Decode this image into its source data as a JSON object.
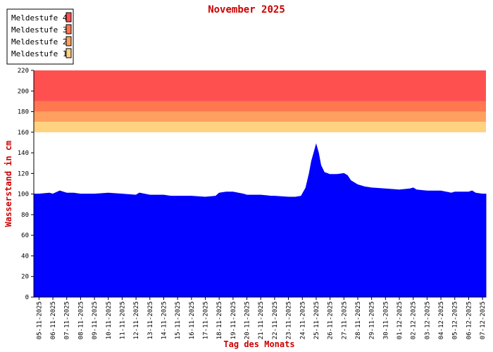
{
  "chart_data": {
    "type": "area",
    "title": "November 2025",
    "xlabel": "Tag des Monats",
    "ylabel": "Wasserstand in cm",
    "ylim": [
      0,
      220
    ],
    "yticks": [
      0,
      20,
      40,
      60,
      80,
      100,
      120,
      140,
      160,
      180,
      200,
      220
    ],
    "x_tick_labels": [
      "05-11-2025",
      "06-11-2025",
      "07-11-2025",
      "08-11-2025",
      "09-11-2025",
      "10-11-2025",
      "11-11-2025",
      "12-11-2025",
      "13-11-2025",
      "14-11-2025",
      "15-11-2025",
      "16-11-2025",
      "17-11-2025",
      "18-11-2025",
      "19-11-2025",
      "20-11-2025",
      "21-11-2025",
      "22-11-2025",
      "23-11-2025",
      "24-11-2025",
      "25-11-2025",
      "26-11-2025",
      "27-11-2025",
      "28-11-2025",
      "29-11-2025",
      "30-11-2025",
      "01-12-2025",
      "02-12-2025",
      "03-12-2025",
      "04-12-2025",
      "05-12-2025",
      "06-12-2025",
      "07-12-2025"
    ],
    "grid": false,
    "legend_position": "top-left",
    "bands": [
      {
        "label": "Meldestufe 4",
        "from": 190,
        "to": 220,
        "color": "#ff5050"
      },
      {
        "label": "Meldestufe 3",
        "from": 180,
        "to": 190,
        "color": "#ff7850"
      },
      {
        "label": "Meldestufe 2",
        "from": 170,
        "to": 180,
        "color": "#ffa060"
      },
      {
        "label": "Meldestufe 1",
        "from": 160,
        "to": 170,
        "color": "#ffd280"
      }
    ],
    "series": [
      {
        "color": "#0000ff",
        "points": [
          [
            "05-11-2025",
            100
          ],
          [
            "05-11-2025 18:00",
            101
          ],
          [
            "06-11-2025",
            100
          ],
          [
            "06-11-2025 12:00",
            103
          ],
          [
            "07-11-2025",
            101
          ],
          [
            "07-11-2025 12:00",
            101
          ],
          [
            "08-11-2025",
            100
          ],
          [
            "09-11-2025",
            100
          ],
          [
            "10-11-2025",
            101
          ],
          [
            "11-11-2025",
            100
          ],
          [
            "12-11-2025",
            99
          ],
          [
            "12-11-2025 06:00",
            101
          ],
          [
            "13-11-2025",
            99
          ],
          [
            "14-11-2025",
            99
          ],
          [
            "14-11-2025 12:00",
            98
          ],
          [
            "15-11-2025",
            98
          ],
          [
            "16-11-2025",
            98
          ],
          [
            "17-11-2025",
            97
          ],
          [
            "17-11-2025 18:00",
            98
          ],
          [
            "18-11-2025",
            101
          ],
          [
            "18-11-2025 12:00",
            102
          ],
          [
            "19-11-2025",
            102
          ],
          [
            "19-11-2025 18:00",
            100
          ],
          [
            "20-11-2025",
            99
          ],
          [
            "21-11-2025",
            99
          ],
          [
            "21-11-2025 18:00",
            98
          ],
          [
            "22-11-2025",
            98
          ],
          [
            "23-11-2025",
            97
          ],
          [
            "23-11-2025 12:00",
            97
          ],
          [
            "23-11-2025 22:00",
            98
          ],
          [
            "24-11-2025",
            100
          ],
          [
            "24-11-2025 06:00",
            106
          ],
          [
            "24-11-2025 12:00",
            120
          ],
          [
            "24-11-2025 16:00",
            132
          ],
          [
            "24-11-2025 20:00",
            140
          ],
          [
            "25-11-2025",
            148
          ],
          [
            "25-11-2025 04:00",
            140
          ],
          [
            "25-11-2025 08:00",
            128
          ],
          [
            "25-11-2025 14:00",
            121
          ],
          [
            "26-11-2025",
            119
          ],
          [
            "26-11-2025 12:00",
            119
          ],
          [
            "27-11-2025",
            120
          ],
          [
            "27-11-2025 06:00",
            118
          ],
          [
            "27-11-2025 12:00",
            113
          ],
          [
            "28-11-2025",
            109
          ],
          [
            "28-11-2025 12:00",
            107
          ],
          [
            "29-11-2025",
            106
          ],
          [
            "30-11-2025",
            105
          ],
          [
            "01-12-2025",
            104
          ],
          [
            "01-12-2025 18:00",
            105
          ],
          [
            "02-12-2025",
            106
          ],
          [
            "02-12-2025 06:00",
            104
          ],
          [
            "03-12-2025",
            103
          ],
          [
            "04-12-2025",
            103
          ],
          [
            "04-12-2025 18:00",
            101
          ],
          [
            "05-12-2025",
            102
          ],
          [
            "06-12-2025",
            102
          ],
          [
            "06-12-2025 06:00",
            103
          ],
          [
            "06-12-2025 12:00",
            101
          ],
          [
            "07-12-2025",
            100
          ],
          [
            "07-12-2025 06:00",
            100
          ]
        ]
      }
    ]
  }
}
